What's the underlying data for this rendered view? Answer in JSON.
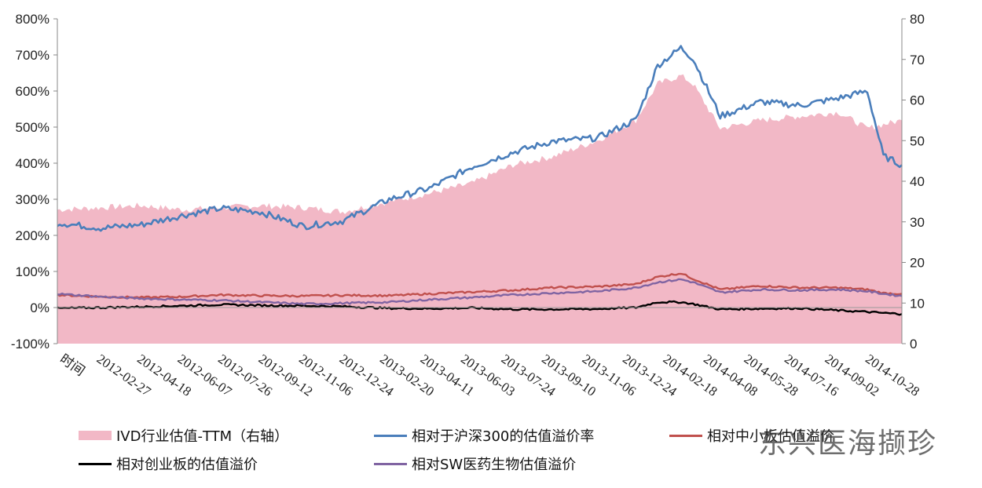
{
  "chart_data": {
    "type": "area",
    "x_axis_label": "时间",
    "x_ticks": [
      "2012-02-27",
      "2012-04-18",
      "2012-06-07",
      "2012-07-26",
      "2012-09-12",
      "2012-11-06",
      "2012-12-24",
      "2013-02-20",
      "2013-04-11",
      "2013-06-03",
      "2013-07-24",
      "2013-09-10",
      "2013-11-06",
      "2013-12-24",
      "2014-02-18",
      "2014-04-08",
      "2014-05-28",
      "2014-07-16",
      "2014-09-02",
      "2014-10-28"
    ],
    "left_axis": {
      "ticks": [
        "800%",
        "700%",
        "600%",
        "500%",
        "400%",
        "300%",
        "200%",
        "100%",
        "0%",
        "-100%"
      ],
      "min": -100,
      "max": 800
    },
    "right_axis": {
      "ticks": [
        "80",
        "70",
        "60",
        "50",
        "40",
        "30",
        "20",
        "10",
        "0"
      ],
      "min": 0,
      "max": 80
    },
    "x": [
      "2012-01-04",
      "2012-02-27",
      "2012-04-18",
      "2012-06-07",
      "2012-07-26",
      "2012-09-12",
      "2012-11-06",
      "2012-12-24",
      "2013-02-20",
      "2013-04-11",
      "2013-06-03",
      "2013-07-24",
      "2013-09-10",
      "2013-11-06",
      "2013-12-24",
      "2014-01-20",
      "2014-02-18",
      "2014-03-05",
      "2014-04-08",
      "2014-05-28",
      "2014-07-16",
      "2014-09-02",
      "2014-10-08",
      "2014-10-28",
      "2014-11-20"
    ],
    "series": [
      {
        "name": "IVD行业估值-TTM（右轴）",
        "axis": "right",
        "style": "area",
        "color": "#f2b8c6",
        "values": [
          33,
          33.5,
          34,
          33,
          33.5,
          34,
          33.5,
          32.5,
          35,
          37,
          39.5,
          44,
          46,
          50,
          55,
          64,
          66,
          64,
          53,
          55,
          56,
          57,
          53,
          54,
          55
        ]
      },
      {
        "name": "相对于沪深300的估值溢价率",
        "axis": "left",
        "style": "line",
        "color": "#4a7ebb",
        "values": [
          235,
          220,
          230,
          255,
          275,
          265,
          225,
          240,
          300,
          330,
          390,
          430,
          460,
          470,
          520,
          670,
          720,
          690,
          530,
          570,
          560,
          580,
          600,
          420,
          395
        ]
      },
      {
        "name": "相对中小板估值溢价",
        "axis": "left",
        "style": "line",
        "color": "#c0504d",
        "values": [
          35,
          30,
          28,
          30,
          35,
          33,
          32,
          34,
          33,
          38,
          43,
          48,
          55,
          58,
          65,
          85,
          95,
          80,
          50,
          60,
          55,
          55,
          50,
          40,
          38
        ]
      },
      {
        "name": "相对创业板的估值溢价",
        "axis": "left",
        "style": "line",
        "color": "#000000",
        "values": [
          -2,
          0,
          2,
          5,
          8,
          6,
          5,
          3,
          -2,
          -3,
          -1,
          -5,
          -5,
          -4,
          0,
          15,
          15,
          10,
          -5,
          -3,
          -2,
          -8,
          -12,
          -15,
          -18
        ]
      },
      {
        "name": "相对SW医药生物估值溢价",
        "axis": "left",
        "style": "line",
        "color": "#8064a2",
        "values": [
          38,
          30,
          25,
          22,
          20,
          15,
          10,
          12,
          15,
          22,
          28,
          35,
          40,
          45,
          55,
          70,
          78,
          70,
          42,
          50,
          48,
          50,
          45,
          38,
          32
        ]
      }
    ]
  },
  "watermark": "东兴医海撷珍",
  "colors": {
    "axis": "#888888",
    "zero_line": "#9a9a9a"
  }
}
